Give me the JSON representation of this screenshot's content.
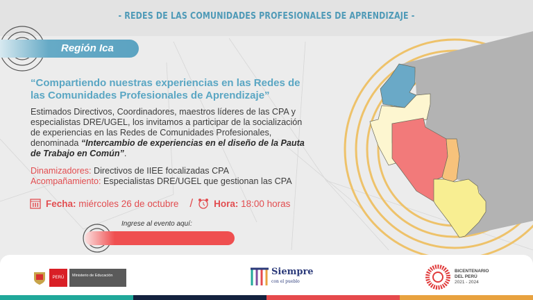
{
  "header": {
    "title": "- REDES DE LAS COMUNIDADES PROFESIONALES DE APRENDIZAJE -"
  },
  "region": {
    "label": "Región Ica"
  },
  "invitation": {
    "quote": "“Compartiendo nuestras experiencias en las Redes de las Comunidades Profesionales de Aprendizaje”",
    "body_intro": "Estimados Directivos, Coordinadores, maestros líderes de las CPA y especialistas DRE/UGEL, los invitamos a participar de la socialización de experiencias en las Redes de Comunidades Profesionales, denominada ",
    "event_name": "“Intercambio de experiencias en el diseño de la Pauta de Trabajo  en Común”",
    "body_end": "."
  },
  "roles": [
    {
      "key": "Dinamizadores:",
      "value": " Directivos de IIEE focalizadas CPA"
    },
    {
      "key": "Acompañamiento:",
      "value": " Especialistas DRE/UGEL que gestionan las CPA"
    }
  ],
  "schedule": {
    "date_label": "Fecha:",
    "date": " miércoles 26 de octubre",
    "separator": "/",
    "time_label": "Hora:",
    "time": " 18:00 horas"
  },
  "link": {
    "prompt": "Ingrese al evento aquí:"
  },
  "footer": {
    "peru": "PERÚ",
    "ministry": "Ministerio de Educación",
    "slogan_main": "Siempre",
    "slogan_sub": "con el pueblo",
    "bicentenario": [
      "BICENTENARIO",
      "DEL PERÚ",
      "2021 - 2024"
    ]
  },
  "colors": {
    "teal": "#20a89a",
    "navy": "#14223f",
    "red": "#e64a4c",
    "orange": "#e8a23f",
    "accent_blue": "#5aa6c3",
    "map_blue": "#6aa9c7",
    "map_cream": "#fdf6d0",
    "map_red": "#f27a7a",
    "map_orange": "#f7c27b",
    "map_yellow": "#f8ee92"
  }
}
